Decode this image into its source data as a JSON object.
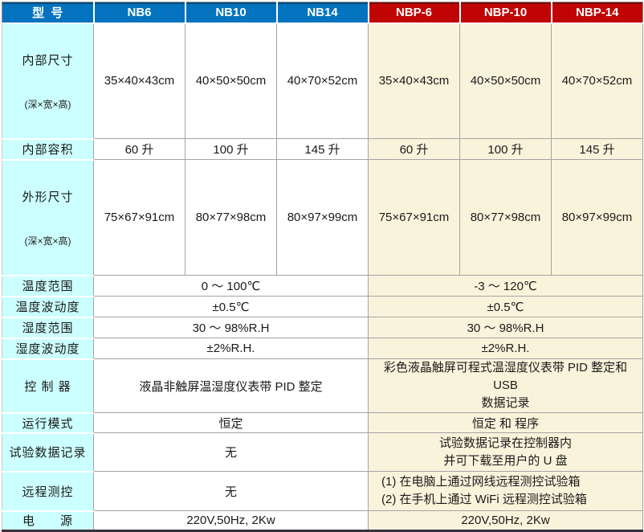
{
  "table": {
    "header": {
      "label": "型  号",
      "models": [
        "NB6",
        "NB10",
        "NB14",
        "NBP-6",
        "NBP-10",
        "NBP-14"
      ]
    },
    "rows": {
      "inner_size": {
        "label": "内部尺寸",
        "sub": "(深×宽×高)",
        "cells": [
          "35×40×43cm",
          "40×50×50cm",
          "40×70×52cm",
          "35×40×43cm",
          "40×50×50cm",
          "40×70×52cm"
        ]
      },
      "volume": {
        "label": "内部容积",
        "cells": [
          "60 升",
          "100 升",
          "145 升",
          "60 升",
          "100 升",
          "145 升"
        ]
      },
      "outer_size": {
        "label": "外形尺寸",
        "sub": "(深×宽×高)",
        "cells": [
          "75×67×91cm",
          "80×77×98cm",
          "80×97×99cm",
          "75×67×91cm",
          "80×77×98cm",
          "80×97×99cm"
        ]
      },
      "temp_range": {
        "label": "温度范围",
        "nb": "0 ～ 100℃",
        "nbp": "-3 ～ 120℃"
      },
      "temp_fluct": {
        "label": "温度波动度",
        "nb": "±0.5℃",
        "nbp": "±0.5℃"
      },
      "humi_range": {
        "label": "湿度范围",
        "nb": "30 ～ 98%R.H",
        "nbp": "30 ～ 98%R.H"
      },
      "humi_fluct": {
        "label": "湿度波动度",
        "nb": "±2%R.H.",
        "nbp": "±2%R.H."
      },
      "controller": {
        "label": "控 制 器",
        "nb": "液晶非触屏温湿度仪表带 PID 整定",
        "nbp": "彩色液晶触屏可程式温湿度仪表带 PID 整定和 USB\n数据记录"
      },
      "run_mode": {
        "label": "运行模式",
        "nb": "恒定",
        "nbp": "恒定 和 程序"
      },
      "data_record": {
        "label": "试验数据记录",
        "nb": "无",
        "nbp": "试验数据记录在控制器内\n并可下载至用户的 U 盘"
      },
      "remote": {
        "label": "远程测控",
        "nb": "无",
        "nbp": "(1) 在电脑上通过网线远程测控试验箱\n(2) 在手机上通过 WiFi 远程测控试验箱"
      },
      "power": {
        "label": "电      源",
        "nb": "220V,50Hz, 2Kw",
        "nbp": "220V,50Hz, 2Kw"
      }
    }
  },
  "colors": {
    "header_blue": "#0473BF",
    "header_red": "#C00404",
    "label_column_bg": "#CCFFFF",
    "nb_cell_bg": "#FFFFFF",
    "nbp_cell_bg": "#FAF3DC",
    "grid_line": "#A3A3A3",
    "bottom_rule": "#33333C"
  }
}
